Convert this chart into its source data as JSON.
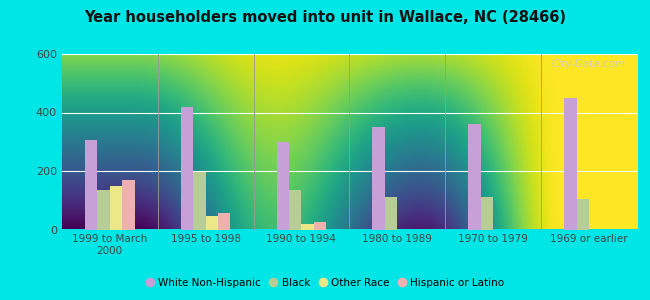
{
  "title": "Year householders moved into unit in Wallace, NC (28466)",
  "categories": [
    "1999 to March\n2000",
    "1995 to 1998",
    "1990 to 1994",
    "1980 to 1989",
    "1970 to 1979",
    "1969 or earlier"
  ],
  "series": {
    "White Non-Hispanic": [
      305,
      420,
      300,
      350,
      360,
      450
    ],
    "Black": [
      135,
      195,
      135,
      110,
      110,
      105
    ],
    "Other Race": [
      150,
      45,
      20,
      0,
      0,
      0
    ],
    "Hispanic or Latino": [
      170,
      55,
      25,
      0,
      0,
      0
    ]
  },
  "colors": {
    "White Non-Hispanic": "#c8a0d8",
    "Black": "#b8cc98",
    "Other Race": "#ece888",
    "Hispanic or Latino": "#f0b0b0"
  },
  "ylim": [
    0,
    600
  ],
  "yticks": [
    0,
    200,
    400,
    600
  ],
  "outer_bg": "#00e5e5",
  "plot_bg_top": "#f5fdf8",
  "plot_bg_bottom": "#c8eecc",
  "watermark": "City-Data.com",
  "legend_labels": [
    "White Non-Hispanic",
    "Black",
    "Other Race",
    "Hispanic or Latino"
  ],
  "bar_width": 0.13
}
